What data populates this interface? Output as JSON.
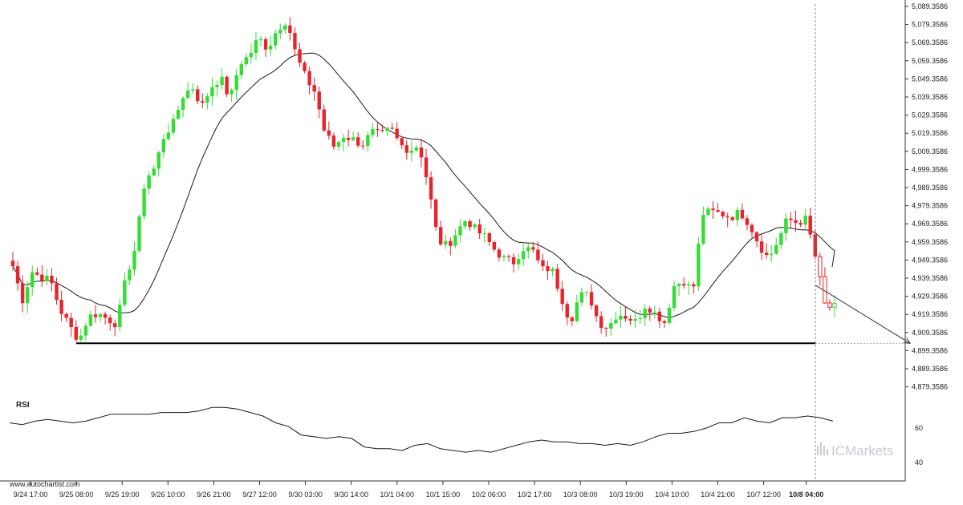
{
  "source_label": "www.autochartist.com",
  "watermark": "ICMarkets",
  "rsi_label": "RSI",
  "colors": {
    "bull": "#33dd33",
    "bear": "#e8232c",
    "ma": "#1a1a1a",
    "support": "#000000",
    "rsi": "#1a1a1a",
    "projection": "#333333"
  },
  "chart_data": {
    "type": "candlestick",
    "title": "",
    "xlabel": "",
    "ylabel": "",
    "ylim": [
      4870,
      5090
    ],
    "y_ticks": [
      "5,089.3586",
      "5,079.3586",
      "5,069.3586",
      "5,059.3586",
      "5,049.3586",
      "5,039.3586",
      "5,029.3586",
      "5,019.3586",
      "5,009.3586",
      "4,999.3586",
      "4,989.3586",
      "4,979.3586",
      "4,969.3586",
      "4,959.3586",
      "4,949.3586",
      "4,939.3586",
      "4,929.3586",
      "4,919.3586",
      "4,909.3586",
      "4,899.3586",
      "4,889.3586",
      "4,879.3586"
    ],
    "x_ticks": [
      "9/24 17:00",
      "9/25 08:00",
      "9/25 19:00",
      "9/26 10:00",
      "9/26 21:00",
      "9/27 12:00",
      "9/30 03:00",
      "9/30 14:00",
      "10/1 04:00",
      "10/1 15:00",
      "10/2 06:00",
      "10/2 17:00",
      "10/3 08:00",
      "10/3 19:00",
      "10/4 10:00",
      "10/4 21:00",
      "10/7 12:00",
      "10/8 04:00"
    ],
    "highlighted_x_tick": "10/8 04:00",
    "support_level": 4903.4,
    "projection": {
      "from_price": 4935.5,
      "to_price": 4903.4
    },
    "price_path": [
      4946,
      4927,
      4943,
      4940,
      4938,
      4922,
      4913,
      4905,
      4918,
      4920,
      4917,
      4914,
      4940,
      4957,
      4994,
      5000,
      5018,
      5025,
      5040,
      5045,
      5034,
      5045,
      5050,
      5038,
      5058,
      5062,
      5072,
      5066,
      5077,
      5082,
      5062,
      5050,
      5042,
      5020,
      5012,
      5018,
      5016,
      5013,
      5020,
      5018,
      5022,
      5013,
      5010,
      5013,
      4990,
      4960,
      4957,
      4965,
      4972,
      4966,
      4962,
      4955,
      4950,
      4948,
      4956,
      4955,
      4944,
      4945,
      4930,
      4915,
      4930,
      4930,
      4915,
      4912,
      4920,
      4918,
      4915,
      4925,
      4920,
      4915,
      4935,
      4938,
      4932,
      4975,
      4976,
      4975,
      4973,
      4976,
      4969,
      4958,
      4950,
      4960,
      4972,
      4970,
      4972,
      4950,
      4924,
      4923
    ],
    "rsi": {
      "label": "RSI",
      "y_ticks": [
        "60",
        "40"
      ],
      "values": [
        63,
        62,
        64,
        65,
        64,
        63,
        64,
        66,
        68,
        68,
        68,
        68,
        69,
        69,
        69,
        70,
        72,
        72,
        71,
        69,
        67,
        63,
        61,
        56,
        55,
        54,
        55,
        54,
        49,
        48,
        48,
        47,
        50,
        51,
        48,
        47,
        46,
        47,
        46,
        48,
        50,
        52,
        53,
        52,
        52,
        51,
        51,
        50,
        51,
        50,
        52,
        55,
        57,
        57,
        58,
        60,
        63,
        63,
        66,
        64,
        63,
        66,
        66,
        67,
        66,
        64
      ]
    }
  }
}
